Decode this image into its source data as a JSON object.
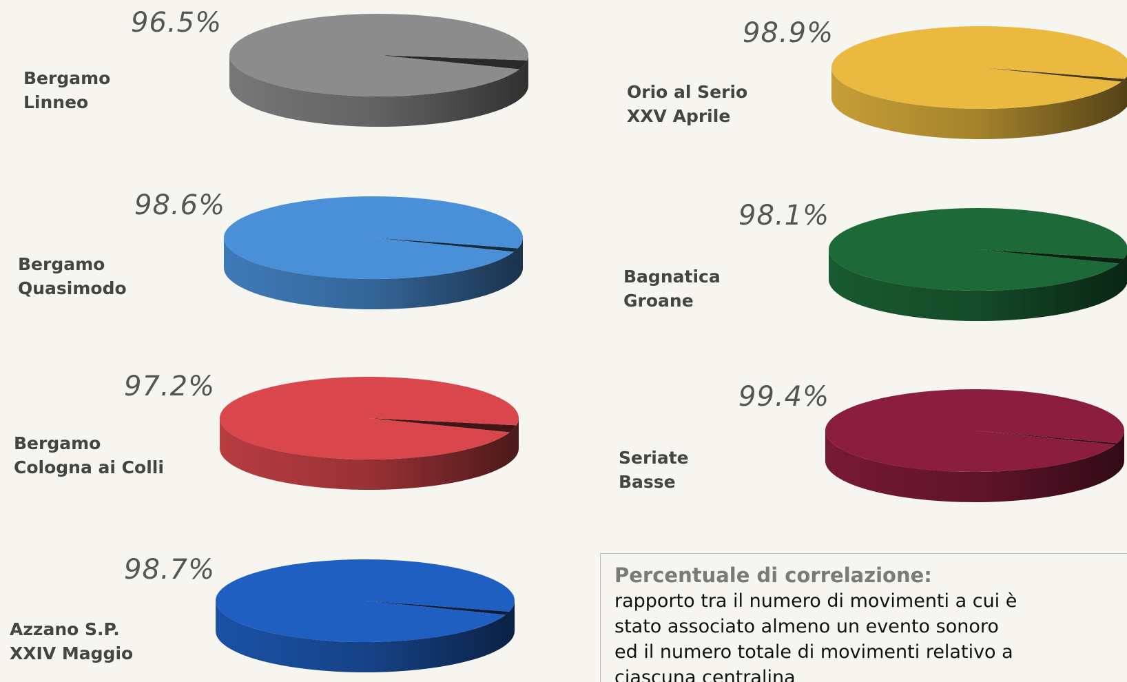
{
  "chart_data": [
    {
      "type": "pie",
      "title_lines": [
        "Bergamo",
        "Linneo"
      ],
      "values": [
        96.5
      ],
      "value_labels": [
        "96.5%"
      ],
      "color": "#8c8c8c"
    },
    {
      "type": "pie",
      "title_lines": [
        "Bergamo",
        "Quasimodo"
      ],
      "values": [
        98.6
      ],
      "value_labels": [
        "98.6%"
      ],
      "color": "#4a90d9"
    },
    {
      "type": "pie",
      "title_lines": [
        "Bergamo",
        "Cologna ai Colli"
      ],
      "values": [
        97.2
      ],
      "value_labels": [
        "97.2%"
      ],
      "color": "#d9464b"
    },
    {
      "type": "pie",
      "title_lines": [
        "Azzano S.P.",
        "XXIV Maggio"
      ],
      "values": [
        98.7
      ],
      "value_labels": [
        "98.7%"
      ],
      "color": "#1f5fc2"
    },
    {
      "type": "pie",
      "title_lines": [
        "Orio al Serio",
        "XXV Aprile"
      ],
      "values": [
        98.9
      ],
      "value_labels": [
        "98.9%"
      ],
      "color": "#e9ba3f"
    },
    {
      "type": "pie",
      "title_lines": [
        "Bagnatica",
        "Groane"
      ],
      "values": [
        98.1
      ],
      "value_labels": [
        "98.1%"
      ],
      "color": "#1d6a38"
    },
    {
      "type": "pie",
      "title_lines": [
        "Seriate",
        "Basse"
      ],
      "values": [
        99.4
      ],
      "value_labels": [
        "99.4%"
      ],
      "color": "#8b1d3f"
    }
  ],
  "note": {
    "title": "Percentuale di correlazione:",
    "lines": [
      "rapporto tra il numero di movimenti a cui è",
      "stato associato almeno un evento sonoro",
      "ed il numero totale di movimenti relativo a",
      "ciascuna centralina"
    ]
  }
}
